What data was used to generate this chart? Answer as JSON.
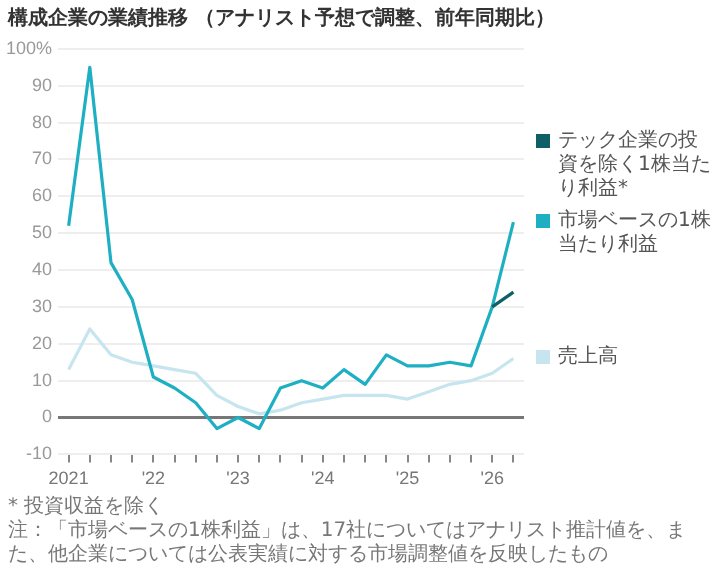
{
  "chart_data": {
    "type": "line",
    "title": "構成企業の業績推移 （アナリスト予想で調整、前年同期比）",
    "categories": [
      "2021",
      null,
      null,
      null,
      "'22",
      null,
      null,
      null,
      "'23",
      null,
      null,
      null,
      "'24",
      null,
      null,
      null,
      "'25",
      null,
      null,
      null,
      "'26",
      null
    ],
    "series": [
      {
        "name": "テック企業の投資を除く1株当たり利益*",
        "color": "#0f5f66",
        "values": [
          null,
          null,
          null,
          null,
          null,
          null,
          null,
          null,
          null,
          null,
          null,
          null,
          null,
          null,
          null,
          null,
          null,
          null,
          null,
          null,
          30,
          34
        ]
      },
      {
        "name": "市場ベースの1株当たり利益",
        "color": "#1eb0c2",
        "values": [
          52,
          95,
          42,
          32,
          11,
          8,
          4,
          -3,
          0,
          -3,
          8,
          10,
          8,
          13,
          9,
          17,
          14,
          14,
          15,
          14,
          30,
          53
        ]
      },
      {
        "name": "売上高",
        "color": "#c6e5ef",
        "values": [
          13,
          24,
          17,
          15,
          14,
          13,
          12,
          6,
          3,
          1,
          2,
          4,
          5,
          6,
          6,
          6,
          5,
          7,
          9,
          10,
          12,
          16
        ]
      }
    ],
    "ylim": [
      -10,
      100
    ],
    "yticks": [
      -10,
      0,
      10,
      20,
      30,
      40,
      50,
      60,
      70,
      80,
      {
        "value": 100,
        "label": "100%"
      },
      90
    ],
    "grid": "y",
    "legend": "right",
    "marker": "none",
    "line_style": "solid",
    "annotations": [
      "* 投資収益を除く",
      "注：「市場ベースの1株利益」は、17社についてはアナリスト推計値を、また、他企業については公表実績に対する市場調整値を反映したもの"
    ]
  }
}
